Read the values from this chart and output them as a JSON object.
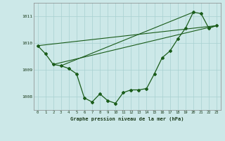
{
  "xlabel": "Graphe pression niveau de la mer (hPa)",
  "background_color": "#cce8e8",
  "grid_color": "#a8d0d0",
  "line_color": "#1a5c1a",
  "x_values": [
    0,
    1,
    2,
    3,
    4,
    5,
    6,
    7,
    8,
    9,
    10,
    11,
    12,
    13,
    14,
    15,
    16,
    17,
    18,
    19,
    20,
    21,
    22,
    23
  ],
  "main_line": [
    1009.9,
    1009.6,
    1009.2,
    1009.15,
    1009.05,
    1008.85,
    1007.95,
    1007.8,
    1008.1,
    1007.85,
    1007.75,
    1008.15,
    1008.25,
    1008.25,
    1008.3,
    1008.85,
    1009.45,
    1009.7,
    1010.15,
    1010.55,
    1011.15,
    1011.1,
    1010.55,
    1010.65
  ],
  "line2": [
    [
      0,
      1009.9
    ],
    [
      23,
      1010.65
    ]
  ],
  "line3": [
    [
      2,
      1009.2
    ],
    [
      23,
      1010.65
    ]
  ],
  "line4": [
    [
      3,
      1009.15
    ],
    [
      20,
      1011.15
    ]
  ],
  "ylim": [
    1007.5,
    1011.5
  ],
  "yticks": [
    1008,
    1009,
    1010,
    1011
  ],
  "xticks": [
    0,
    1,
    2,
    3,
    4,
    5,
    6,
    7,
    8,
    9,
    10,
    11,
    12,
    13,
    14,
    15,
    16,
    17,
    18,
    19,
    20,
    21,
    22,
    23
  ]
}
